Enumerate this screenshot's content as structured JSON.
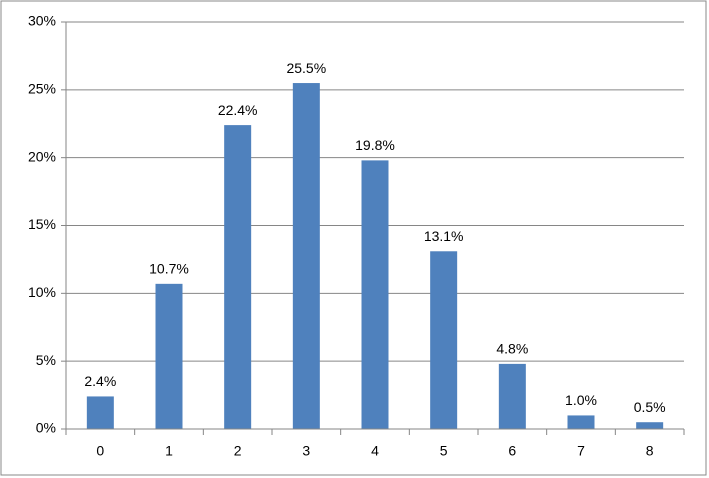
{
  "chart_data": {
    "type": "bar",
    "categories": [
      "0",
      "1",
      "2",
      "3",
      "4",
      "5",
      "6",
      "7",
      "8"
    ],
    "values": [
      2.4,
      10.7,
      22.4,
      25.5,
      19.8,
      13.1,
      4.8,
      1.0,
      0.5
    ],
    "value_labels": [
      "2.4%",
      "10.7%",
      "22.4%",
      "25.5%",
      "19.8%",
      "13.1%",
      "4.8%",
      "1.0%",
      "0.5%"
    ],
    "color": "#4f81bd",
    "ylim": [
      0,
      30
    ],
    "yticks": [
      {
        "value": 0,
        "label": "0%"
      },
      {
        "value": 5,
        "label": "5%"
      },
      {
        "value": 10,
        "label": "10%"
      },
      {
        "value": 15,
        "label": "15%"
      },
      {
        "value": 20,
        "label": "20%"
      },
      {
        "value": 25,
        "label": "25%"
      },
      {
        "value": 30,
        "label": "30%"
      }
    ],
    "grid": true
  }
}
